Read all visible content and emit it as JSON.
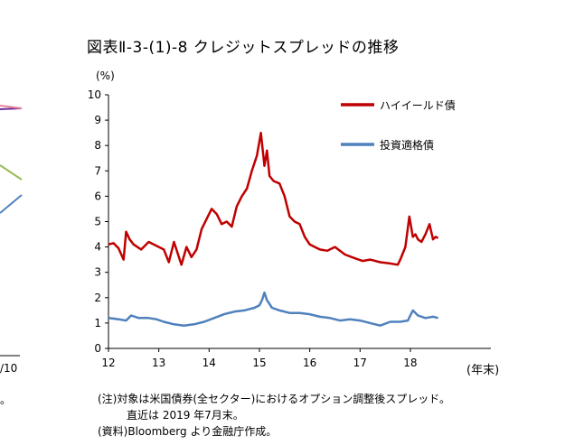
{
  "title": "図表Ⅱ-3-(1)-8 クレジットスプレッドの推移",
  "unit": "(%)",
  "x_unit": "(年末)",
  "left_fragment": {
    "tick": "/10",
    "mark": "。"
  },
  "notes": [
    "(注)対象は米国債券(全セクター)におけるオプション調整後スプレッド。",
    "直近は 2019 年7月末。",
    "(資料)Bloomberg より金融庁作成。"
  ],
  "chart_data": {
    "type": "line",
    "title": "図表Ⅱ-3-(1)-8 クレジットスプレッドの推移",
    "xlabel": "(年末)",
    "ylabel": "(%)",
    "xlim": [
      2012,
      2019.6
    ],
    "ylim": [
      0,
      10
    ],
    "x_ticks": [
      2012,
      2013,
      2014,
      2015,
      2016,
      2017,
      2018
    ],
    "x_tick_labels": [
      "12",
      "13",
      "14",
      "15",
      "16",
      "17",
      "18"
    ],
    "y_ticks": [
      0,
      1,
      2,
      3,
      4,
      5,
      6,
      7,
      8,
      9,
      10
    ],
    "y_tick_labels": [
      "0",
      "1",
      "2",
      "3",
      "4",
      "5",
      "6",
      "7",
      "8",
      "9",
      "10"
    ],
    "grid": false,
    "legend_placement": "top-right",
    "series": [
      {
        "name": "ハイイールド債",
        "color": "#c00000",
        "x": [
          2012.0,
          2012.1,
          2012.2,
          2012.3,
          2012.35,
          2012.42,
          2012.5,
          2012.65,
          2012.8,
          2012.95,
          2013.1,
          2013.2,
          2013.3,
          2013.45,
          2013.55,
          2013.65,
          2013.75,
          2013.85,
          2013.95,
          2014.05,
          2014.15,
          2014.25,
          2014.35,
          2014.45,
          2014.55,
          2014.65,
          2014.75,
          2014.85,
          2014.95,
          2015.03,
          2015.1,
          2015.15,
          2015.2,
          2015.28,
          2015.4,
          2015.5,
          2015.6,
          2015.7,
          2015.8,
          2015.9,
          2016.0,
          2016.1,
          2016.2,
          2016.35,
          2016.5,
          2016.7,
          2016.9,
          2017.05,
          2017.2,
          2017.4,
          2017.6,
          2017.75,
          2017.8,
          2017.9,
          2017.98,
          2018.05,
          2018.1,
          2018.15,
          2018.22,
          2018.3,
          2018.38,
          2018.45,
          2018.5,
          2018.55
        ],
        "values": [
          4.1,
          4.15,
          3.95,
          3.5,
          4.6,
          4.3,
          4.1,
          3.9,
          4.2,
          4.05,
          3.9,
          3.4,
          4.2,
          3.3,
          4.0,
          3.6,
          3.9,
          4.7,
          5.1,
          5.5,
          5.3,
          4.9,
          5.0,
          4.8,
          5.6,
          6.0,
          6.3,
          7.0,
          7.6,
          8.5,
          7.2,
          7.8,
          6.8,
          6.6,
          6.5,
          6.0,
          5.2,
          5.0,
          4.9,
          4.4,
          4.1,
          4.0,
          3.9,
          3.85,
          4.0,
          3.7,
          3.55,
          3.45,
          3.5,
          3.4,
          3.35,
          3.3,
          3.5,
          4.0,
          5.2,
          4.4,
          4.5,
          4.3,
          4.2,
          4.5,
          4.9,
          4.3,
          4.4,
          4.35
        ]
      },
      {
        "name": "投資適格債",
        "color": "#4f81bd",
        "x": [
          2012.0,
          2012.2,
          2012.35,
          2012.45,
          2012.6,
          2012.8,
          2012.95,
          2013.1,
          2013.3,
          2013.5,
          2013.7,
          2013.9,
          2014.1,
          2014.3,
          2014.5,
          2014.7,
          2014.9,
          2015.0,
          2015.05,
          2015.1,
          2015.15,
          2015.25,
          2015.4,
          2015.6,
          2015.8,
          2016.0,
          2016.2,
          2016.4,
          2016.6,
          2016.8,
          2017.0,
          2017.2,
          2017.4,
          2017.6,
          2017.8,
          2017.95,
          2018.0,
          2018.05,
          2018.15,
          2018.3,
          2018.45,
          2018.55
        ],
        "values": [
          1.2,
          1.15,
          1.1,
          1.3,
          1.2,
          1.2,
          1.15,
          1.05,
          0.95,
          0.9,
          0.95,
          1.05,
          1.2,
          1.35,
          1.45,
          1.5,
          1.6,
          1.7,
          1.9,
          2.2,
          1.9,
          1.6,
          1.5,
          1.4,
          1.4,
          1.35,
          1.25,
          1.2,
          1.1,
          1.15,
          1.1,
          1.0,
          0.9,
          1.05,
          1.05,
          1.1,
          1.3,
          1.5,
          1.3,
          1.2,
          1.25,
          1.2
        ]
      }
    ]
  }
}
